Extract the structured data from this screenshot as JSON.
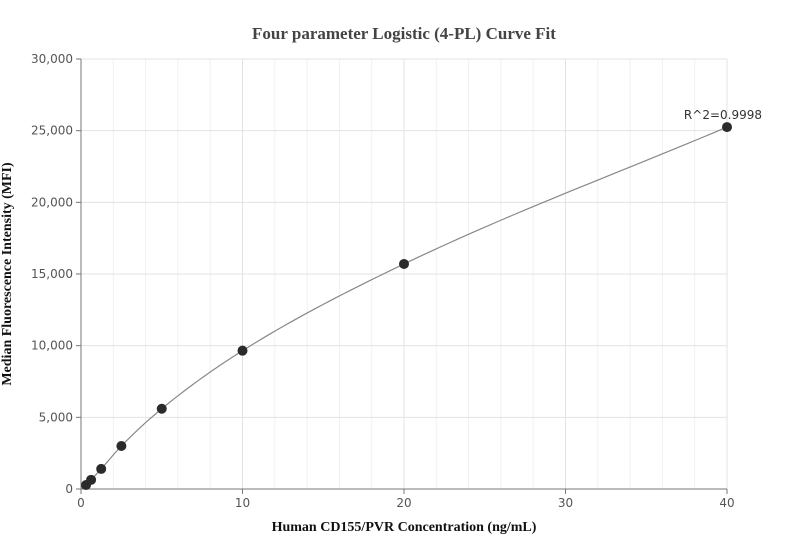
{
  "chart_data": {
    "type": "scatter",
    "title": "Four parameter Logistic (4-PL) Curve Fit",
    "xlabel": "Human CD155/PVR Concentration (ng/mL)",
    "ylabel": "Median Fluorescence Intensity (MFI)",
    "xlim": [
      0,
      40
    ],
    "ylim": [
      0,
      30000
    ],
    "x_ticks": [
      0,
      10,
      20,
      30,
      40
    ],
    "x_tick_labels": [
      "0",
      "10",
      "20",
      "30",
      "40"
    ],
    "y_ticks": [
      0,
      5000,
      10000,
      15000,
      20000,
      25000,
      30000
    ],
    "y_tick_labels": [
      "0",
      "5,000",
      "10,000",
      "15,000",
      "20,000",
      "25,000",
      "30,000"
    ],
    "grid": true,
    "series": [
      {
        "x": [
          0.3125,
          0.625,
          1.25,
          2.5,
          5,
          10,
          20,
          40
        ],
        "y": [
          280,
          640,
          1400,
          3000,
          5600,
          9650,
          15700,
          25250
        ]
      }
    ],
    "annotations": [
      {
        "text": "R^2=0.9998",
        "x": 40,
        "y": 25250
      }
    ]
  }
}
